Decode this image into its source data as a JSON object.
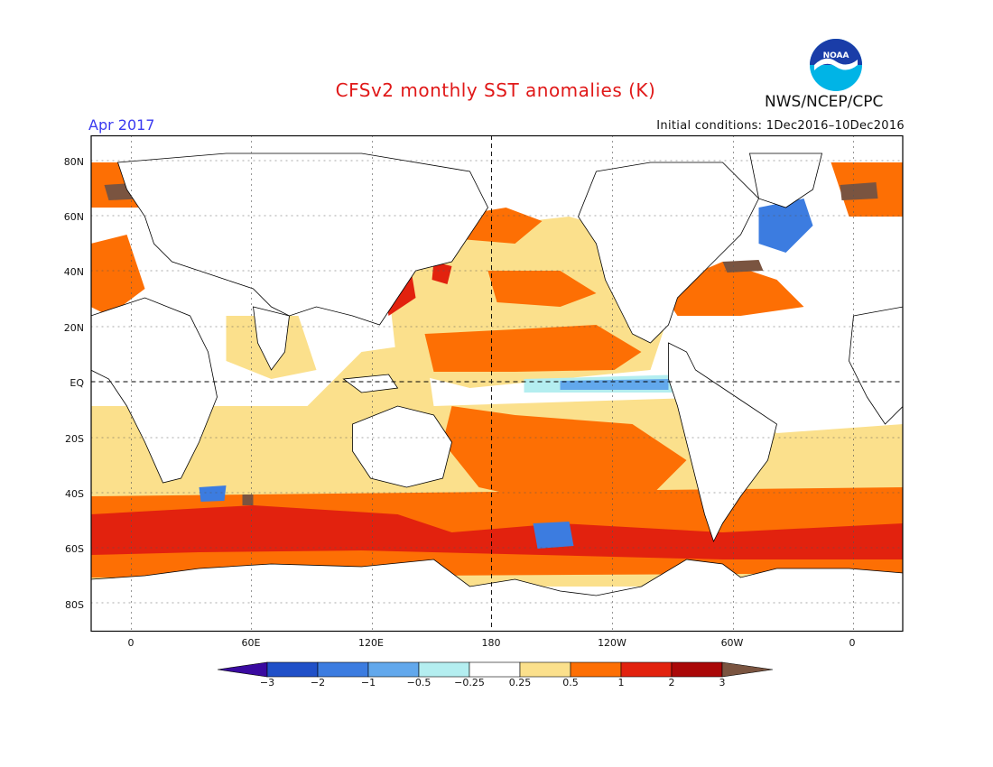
{
  "title": "CFSv2 monthly SST anomalies (K)",
  "month": "Apr 2017",
  "agency": "NWS/NCEP/CPC",
  "initial_conditions": "Initial conditions: 1Dec2016–10Dec2016",
  "logo_text": "NOAA",
  "lat_labels": [
    "80N",
    "60N",
    "40N",
    "20N",
    "EQ",
    "20S",
    "40S",
    "60S",
    "80S"
  ],
  "lon_labels": [
    "0",
    "60E",
    "120E",
    "180",
    "120W",
    "60W",
    "0"
  ],
  "colorbar": {
    "levels": [
      "−3",
      "−2",
      "−1",
      "−0.5",
      "−0.25",
      "0.25",
      "0.5",
      "1",
      "2",
      "3"
    ],
    "colors": [
      "#3a0aa0",
      "#2050c8",
      "#3c7ce0",
      "#62a8ec",
      "#b4eef0",
      "#ffffff",
      "#fbe08c",
      "#fd6f04",
      "#e2220e",
      "#aa0808",
      "#7a5440"
    ]
  },
  "colors": {
    "title": "#e01818",
    "month": "#3a3af0",
    "land": "#ffffff",
    "ocean_base": "#fbe08c"
  }
}
